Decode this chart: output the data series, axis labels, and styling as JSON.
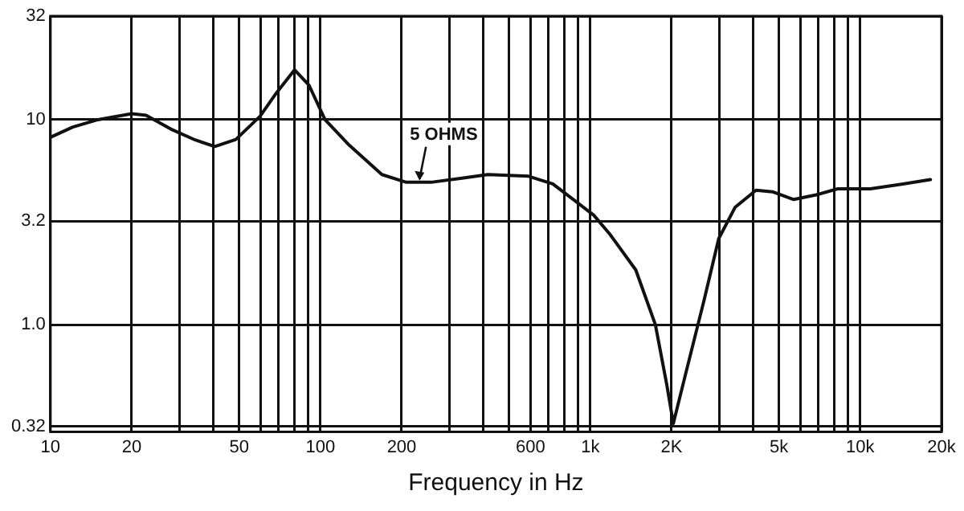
{
  "chart_data": {
    "type": "line",
    "xlabel": "Frequency in Hz",
    "x": [
      10,
      12.1,
      15,
      20,
      22.6,
      27.9,
      34.4,
      40.6,
      48.6,
      59.8,
      68.7,
      80.2,
      90.8,
      104,
      128,
      169,
      208,
      257,
      339,
      417,
      590,
      726,
      895,
      1030,
      1180,
      1474,
      1742,
      1920,
      2030,
      2265,
      2640,
      2990,
      3440,
      4110,
      4730,
      5670,
      6870,
      8240,
      10900,
      14400,
      18200
    ],
    "series": [
      {
        "color": "#111111",
        "values": [
          8.2,
          9.2,
          10,
          10.7,
          10.5,
          9.0,
          7.96,
          7.4,
          8.0,
          10.4,
          13.5,
          17.5,
          14.7,
          10,
          7.5,
          5.4,
          4.95,
          4.95,
          5.2,
          5.4,
          5.3,
          4.86,
          3.94,
          3.42,
          2.77,
          1.85,
          1.0,
          0.51,
          0.33,
          0.59,
          1.32,
          2.63,
          3.74,
          4.53,
          4.45,
          4.08,
          4.3,
          4.6,
          4.6,
          4.86,
          5.1
        ]
      }
    ],
    "log": "xy",
    "xlim": [
      10,
      20000
    ],
    "ylim": [
      0.32,
      32
    ],
    "xticks": [
      10,
      20,
      {
        "value": 30,
        "label": null
      },
      {
        "value": 40,
        "label": null
      },
      50,
      {
        "value": 60,
        "label": null
      },
      {
        "value": 70,
        "label": null
      },
      {
        "value": 80,
        "label": null
      },
      {
        "value": 90,
        "label": null
      },
      100,
      200,
      {
        "value": 300,
        "label": null
      },
      {
        "value": 400,
        "label": null
      },
      {
        "value": 500,
        "label": null
      },
      600,
      {
        "value": 700,
        "label": null
      },
      {
        "value": 800,
        "label": null
      },
      {
        "value": 900,
        "label": null
      },
      {
        "value": 1000,
        "label": "1k"
      },
      {
        "value": 2000,
        "label": "2K"
      },
      {
        "value": 3000,
        "label": null
      },
      {
        "value": 4000,
        "label": null
      },
      {
        "value": 5000,
        "label": "5k"
      },
      {
        "value": 6000,
        "label": null
      },
      {
        "value": 7000,
        "label": null
      },
      {
        "value": 8000,
        "label": null
      },
      {
        "value": 9000,
        "label": null
      },
      {
        "value": 10000,
        "label": "10k"
      },
      {
        "value": 20000,
        "label": "20k"
      }
    ],
    "yticks": [
      0.32,
      {
        "value": 1,
        "label": "1.0"
      },
      3.2,
      10,
      32
    ],
    "grid": true,
    "legend": false,
    "marker": "none",
    "line_style": "solid",
    "annotations": [
      {
        "text": "5 OHMS",
        "x": 233,
        "y": 4.95
      }
    ]
  }
}
